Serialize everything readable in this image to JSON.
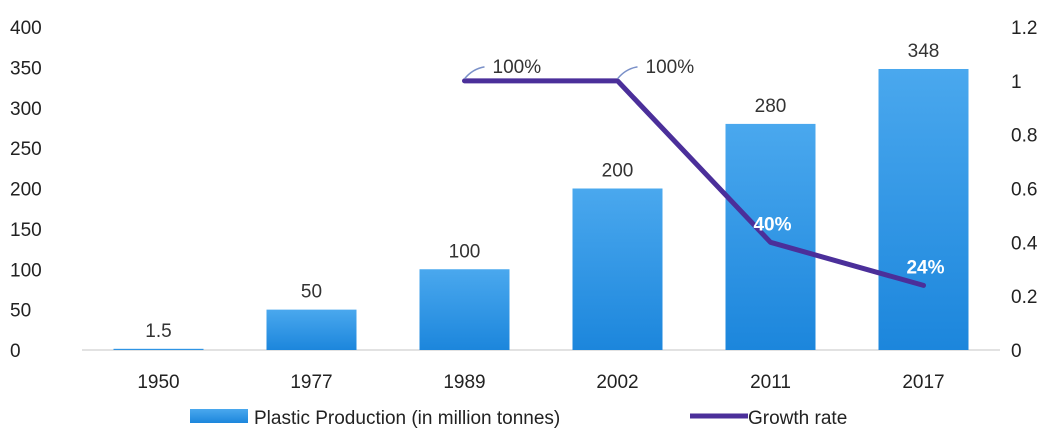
{
  "chart_data": {
    "type": "bar",
    "categories": [
      "1950",
      "1977",
      "1989",
      "2002",
      "2011",
      "2017"
    ],
    "series": [
      {
        "name": "Plastic Production (in million tonnes)",
        "type": "bar",
        "axis": "left",
        "values": [
          1.5,
          50,
          100,
          200,
          280,
          348
        ],
        "labels": [
          "1.5",
          "50",
          "100",
          "200",
          "280",
          "348"
        ]
      },
      {
        "name": "Growth rate",
        "type": "line",
        "axis": "right",
        "values": [
          null,
          null,
          1.0,
          1.0,
          0.4,
          0.24
        ],
        "labels": [
          "",
          "",
          "100%",
          "100%",
          "40%",
          "24%"
        ]
      }
    ],
    "y_left": {
      "ylim": [
        0,
        400
      ],
      "ticks": [
        "0",
        "50",
        "100",
        "150",
        "200",
        "250",
        "300",
        "350",
        "400"
      ]
    },
    "y_right": {
      "ylim": [
        0,
        1.2
      ],
      "ticks": [
        "0",
        "0.2",
        "0.4",
        "0.6",
        "0.8",
        "1",
        "1.2"
      ]
    },
    "grid": false,
    "legend": "bottom",
    "colors": {
      "bar_top": "#4aa8ee",
      "bar_bottom": "#1c86dc",
      "line": "#4b2f9a",
      "axis": "#d9d9d9"
    }
  }
}
